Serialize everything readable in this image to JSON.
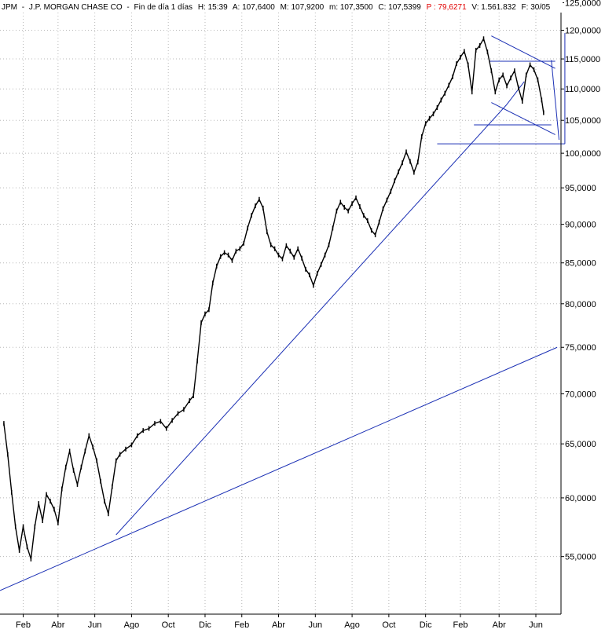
{
  "header": {
    "symbol": "JPM",
    "company": "J.P. MORGAN CHASE CO",
    "period": "Fin de día 1 días",
    "time": "H: 15:39",
    "open": "A: 107,6400",
    "high": "M: 107,9200",
    "low": "m: 107,3500",
    "close": "C: 107,5399",
    "p": "P : 79,6271",
    "volume": "V: 1.561.832",
    "date": "F: 30/05"
  },
  "colors": {
    "price": "#000000",
    "trendline": "#1a2fb4",
    "header_p": "#e00000",
    "grid": "#b8b8b8",
    "background": "#ffffff"
  },
  "chart_data": {
    "type": "line",
    "scale": "log",
    "grid": true,
    "ylim": [
      50500,
      125500
    ],
    "y_ticks": [
      55000,
      60000,
      65000,
      70000,
      75000,
      80000,
      85000,
      90000,
      95000,
      100000,
      105000,
      110000,
      115000,
      120000,
      125000
    ],
    "y_tick_labels": [
      "55,0000",
      "60,0000",
      "65,0000",
      "70,0000",
      "75,0000",
      "80,0000",
      "85,0000",
      "90,0000",
      "95,0000",
      "100,0000",
      "105,0000",
      "110,0000",
      "115,0000",
      "120,0000",
      "125,0000"
    ],
    "x_ticks": [
      1.2,
      3.0,
      4.9,
      6.8,
      8.7,
      10.6,
      12.5,
      14.4,
      16.3,
      18.2,
      20.1,
      22.0,
      23.8,
      25.8,
      27.7
    ],
    "x_tick_labels": [
      "Feb",
      "Abr",
      "Jun",
      "Ago",
      "Oct",
      "Dic",
      "Feb",
      "Abr",
      "Jun",
      "Ago",
      "Oct",
      "Dic",
      "Feb",
      "Abr",
      "Jun"
    ],
    "xlim": [
      0,
      29
    ],
    "series": [
      {
        "points": [
          [
            0.2,
            67000
          ],
          [
            0.4,
            64000
          ],
          [
            0.6,
            60500
          ],
          [
            0.8,
            57500
          ],
          [
            1.0,
            55500
          ],
          [
            1.2,
            57500
          ],
          [
            1.4,
            55800
          ],
          [
            1.6,
            54800
          ],
          [
            1.8,
            57500
          ],
          [
            2.0,
            59500
          ],
          [
            2.2,
            58000
          ],
          [
            2.4,
            60300
          ],
          [
            2.6,
            59700
          ],
          [
            2.8,
            59000
          ],
          [
            3.0,
            57800
          ],
          [
            3.2,
            60800
          ],
          [
            3.4,
            62800
          ],
          [
            3.6,
            64300
          ],
          [
            3.8,
            62500
          ],
          [
            4.0,
            61200
          ],
          [
            4.2,
            62800
          ],
          [
            4.4,
            64300
          ],
          [
            4.6,
            65800
          ],
          [
            4.8,
            64700
          ],
          [
            5.0,
            63400
          ],
          [
            5.2,
            61500
          ],
          [
            5.4,
            59700
          ],
          [
            5.6,
            58600
          ],
          [
            5.8,
            61000
          ],
          [
            6.0,
            63400
          ],
          [
            6.2,
            64000
          ],
          [
            6.5,
            64500
          ],
          [
            6.8,
            64900
          ],
          [
            7.1,
            65800
          ],
          [
            7.4,
            66300
          ],
          [
            7.7,
            66500
          ],
          [
            8.0,
            67000
          ],
          [
            8.3,
            67200
          ],
          [
            8.6,
            66500
          ],
          [
            8.9,
            67300
          ],
          [
            9.2,
            68000
          ],
          [
            9.5,
            68400
          ],
          [
            9.8,
            69300
          ],
          [
            10.0,
            69800
          ],
          [
            10.2,
            73500
          ],
          [
            10.4,
            77800
          ],
          [
            10.6,
            78800
          ],
          [
            10.8,
            79300
          ],
          [
            11.0,
            82500
          ],
          [
            11.2,
            84600
          ],
          [
            11.4,
            85800
          ],
          [
            11.6,
            86300
          ],
          [
            11.8,
            86000
          ],
          [
            12.0,
            85300
          ],
          [
            12.2,
            86500
          ],
          [
            12.4,
            86800
          ],
          [
            12.6,
            87500
          ],
          [
            12.8,
            89500
          ],
          [
            13.0,
            91200
          ],
          [
            13.2,
            92500
          ],
          [
            13.4,
            93400
          ],
          [
            13.6,
            92200
          ],
          [
            13.8,
            89000
          ],
          [
            14.0,
            87300
          ],
          [
            14.2,
            86800
          ],
          [
            14.4,
            86000
          ],
          [
            14.6,
            85500
          ],
          [
            14.8,
            87200
          ],
          [
            15.0,
            86500
          ],
          [
            15.2,
            85700
          ],
          [
            15.4,
            86800
          ],
          [
            15.6,
            85600
          ],
          [
            15.8,
            84200
          ],
          [
            16.0,
            83500
          ],
          [
            16.2,
            82200
          ],
          [
            16.4,
            83700
          ],
          [
            16.6,
            84800
          ],
          [
            16.8,
            86000
          ],
          [
            17.0,
            87300
          ],
          [
            17.2,
            89500
          ],
          [
            17.4,
            91800
          ],
          [
            17.6,
            93000
          ],
          [
            17.8,
            92300
          ],
          [
            18.0,
            91800
          ],
          [
            18.2,
            92800
          ],
          [
            18.4,
            93600
          ],
          [
            18.6,
            92400
          ],
          [
            18.8,
            91200
          ],
          [
            19.0,
            90500
          ],
          [
            19.2,
            89200
          ],
          [
            19.4,
            88600
          ],
          [
            19.6,
            90300
          ],
          [
            19.8,
            92100
          ],
          [
            20.0,
            93300
          ],
          [
            20.2,
            94500
          ],
          [
            20.4,
            96000
          ],
          [
            20.6,
            97300
          ],
          [
            20.8,
            98600
          ],
          [
            21.0,
            100200
          ],
          [
            21.2,
            98800
          ],
          [
            21.4,
            97200
          ],
          [
            21.6,
            98700
          ],
          [
            21.8,
            102500
          ],
          [
            22.0,
            104500
          ],
          [
            22.2,
            105300
          ],
          [
            22.4,
            106000
          ],
          [
            22.6,
            107000
          ],
          [
            22.8,
            108200
          ],
          [
            23.0,
            109300
          ],
          [
            23.2,
            110600
          ],
          [
            23.4,
            112000
          ],
          [
            23.6,
            114200
          ],
          [
            23.8,
            115300
          ],
          [
            24.0,
            116300
          ],
          [
            24.2,
            114000
          ],
          [
            24.4,
            109500
          ],
          [
            24.6,
            116500
          ],
          [
            24.8,
            117300
          ],
          [
            25.0,
            118500
          ],
          [
            25.2,
            116200
          ],
          [
            25.4,
            113000
          ],
          [
            25.6,
            109500
          ],
          [
            25.8,
            111500
          ],
          [
            26.0,
            112300
          ],
          [
            26.2,
            110500
          ],
          [
            26.4,
            111800
          ],
          [
            26.6,
            113000
          ],
          [
            26.8,
            110200
          ],
          [
            27.0,
            108000
          ],
          [
            27.2,
            112300
          ],
          [
            27.4,
            114000
          ],
          [
            27.6,
            113200
          ],
          [
            27.8,
            111500
          ],
          [
            28.0,
            108200
          ],
          [
            28.1,
            106200
          ]
        ]
      }
    ],
    "trendlines": [
      {
        "x1": 0.0,
        "y1": 52300,
        "x2": 28.8,
        "y2": 75000
      },
      {
        "x1": 6.0,
        "y1": 56800,
        "x2": 26.2,
        "y2": 107500
      },
      {
        "x1": 26.2,
        "y1": 107500,
        "x2": 27.1,
        "y2": 111200
      },
      {
        "x1": 25.4,
        "y1": 119000,
        "x2": 28.7,
        "y2": 113400
      },
      {
        "x1": 25.4,
        "y1": 107800,
        "x2": 28.7,
        "y2": 102800
      },
      {
        "x1": 24.5,
        "y1": 104300,
        "x2": 28.5,
        "y2": 104300
      },
      {
        "x1": 22.6,
        "y1": 101400,
        "x2": 29.2,
        "y2": 101400
      },
      {
        "x1": 25.3,
        "y1": 114600,
        "x2": 28.7,
        "y2": 114600
      },
      {
        "x1": 28.5,
        "y1": 114800,
        "x2": 28.9,
        "y2": 102000
      },
      {
        "x1": 29.2,
        "y1": 101400,
        "x2": 29.2,
        "y2": 119500
      }
    ]
  }
}
